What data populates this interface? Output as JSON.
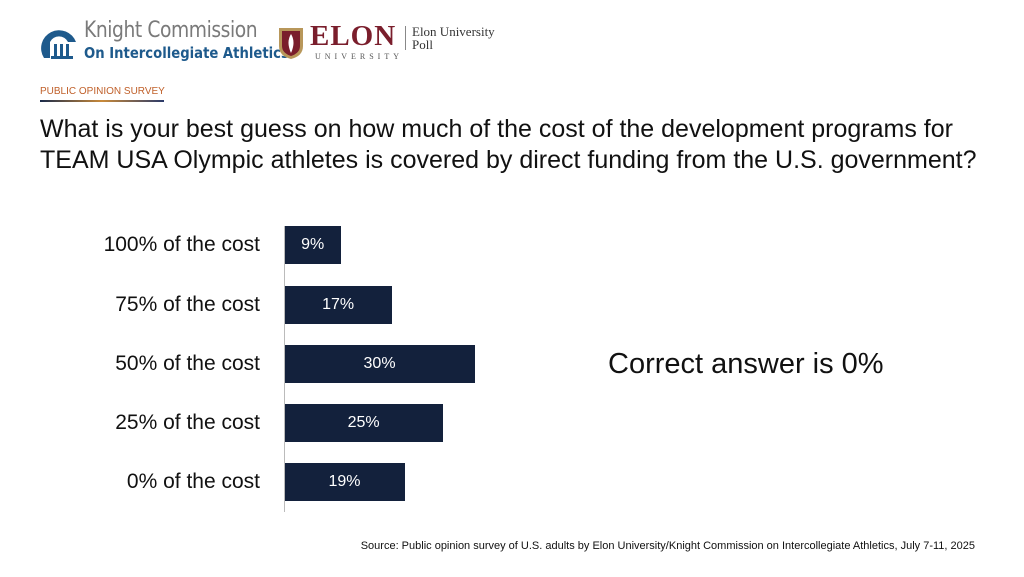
{
  "header": {
    "knight_line1": "Knight Commission",
    "knight_line2": "On Intercollegiate Athletics",
    "elon_wordmark": "ELON",
    "elon_sub": "UNIVERSITY",
    "elon_poll": "Elon University Poll",
    "kicker": "PUBLIC OPINION SURVEY"
  },
  "colors": {
    "bar": "#13213c",
    "kicker": "#c0602a"
  },
  "chart_data": {
    "type": "bar",
    "orientation": "horizontal",
    "title": "What is your best guess on how much of the cost of the development programs for TEAM USA Olympic athletes is covered by direct funding from the U.S. government?",
    "categories": [
      "100% of the cost",
      "75% of the cost",
      "50% of the cost",
      "25% of the cost",
      "0% of the cost"
    ],
    "values": [
      9,
      17,
      30,
      25,
      19
    ],
    "labels": [
      "9%",
      "17%",
      "30%",
      "25%",
      "19%"
    ],
    "xlim": [
      0,
      100
    ],
    "annotation": "Correct answer is 0%"
  },
  "source": "Source: Public opinion survey of U.S. adults by Elon University/Knight Commission on Intercollegiate Athletics, July 7-11, 2025"
}
